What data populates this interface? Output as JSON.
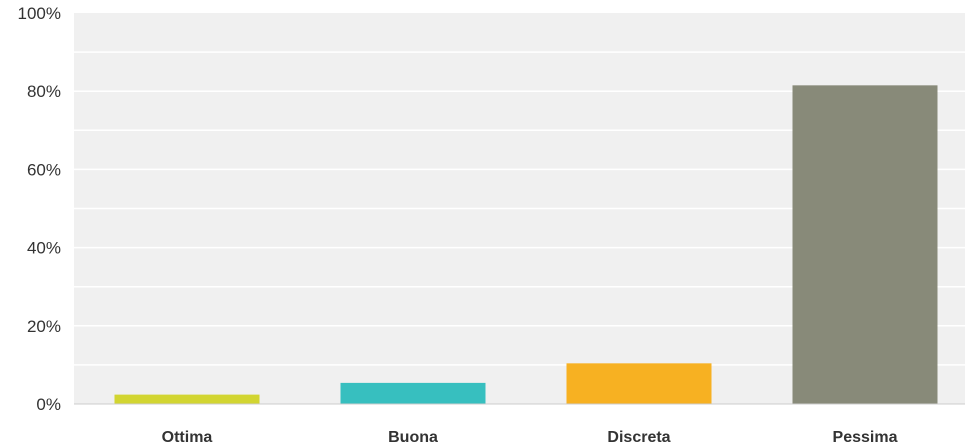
{
  "chart_data": {
    "type": "bar",
    "categories": [
      "Ottima",
      "Buona",
      "Discreta",
      "Pessima"
    ],
    "values": [
      2.4,
      5.4,
      10.4,
      81.5
    ],
    "colors": [
      "#d2d531",
      "#37bfbf",
      "#f7b122",
      "#888a79"
    ],
    "yticks": [
      "0%",
      "20%",
      "40%",
      "60%",
      "80%",
      "100%"
    ],
    "ytick_values": [
      0,
      20,
      40,
      60,
      80,
      100
    ],
    "ylim": [
      0,
      100
    ],
    "grid": true,
    "plot_background": "#f0f0f0",
    "gridline_color": "#ffffff"
  }
}
